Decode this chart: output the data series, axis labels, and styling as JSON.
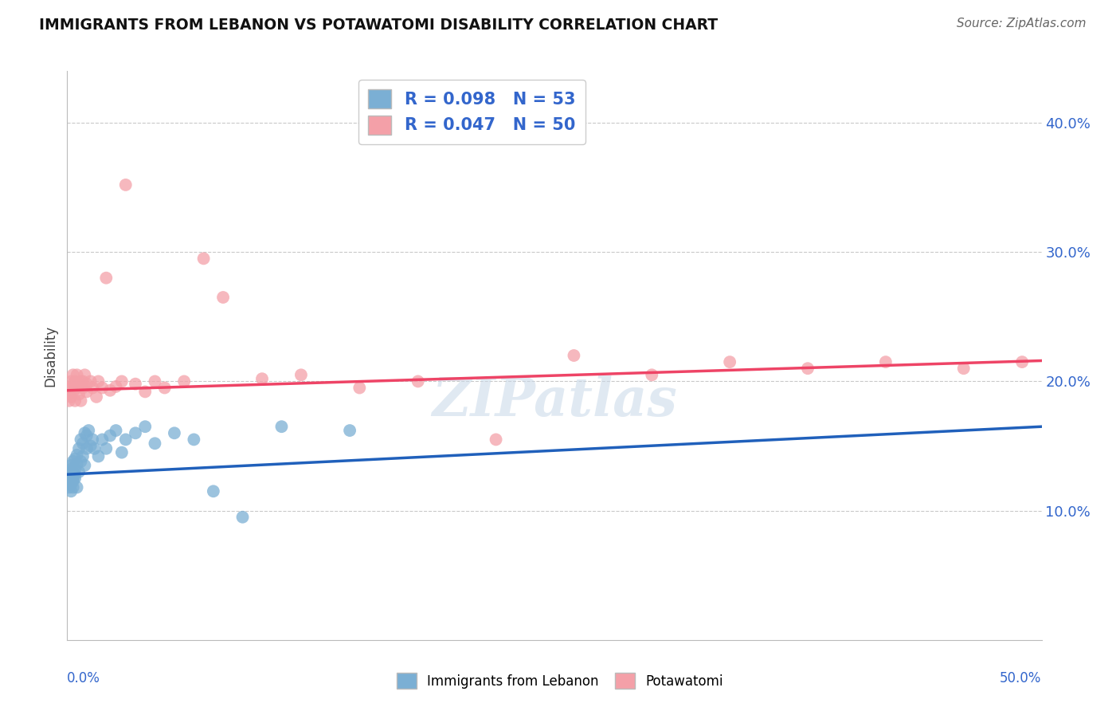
{
  "title": "IMMIGRANTS FROM LEBANON VS POTAWATOMI DISABILITY CORRELATION CHART",
  "source": "Source: ZipAtlas.com",
  "ylabel": "Disability",
  "xlim": [
    0.0,
    0.5
  ],
  "ylim": [
    0.0,
    0.44
  ],
  "ytick_values": [
    0.1,
    0.2,
    0.3,
    0.4
  ],
  "legend_label1": "R = 0.098   N = 53",
  "legend_label2": "R = 0.047   N = 50",
  "legend_series1": "Immigrants from Lebanon",
  "legend_series2": "Potawatomi",
  "blue_color": "#7BAFD4",
  "pink_color": "#F4A0A8",
  "line_blue": "#2060BB",
  "line_pink": "#EE4466",
  "text_color": "#3366CC",
  "watermark": "ZIPatlas",
  "blue_intercept": 0.128,
  "blue_slope": 0.074,
  "pink_intercept": 0.193,
  "pink_slope": 0.046,
  "blue_x": [
    0.001,
    0.001,
    0.001,
    0.001,
    0.001,
    0.002,
    0.002,
    0.002,
    0.002,
    0.002,
    0.002,
    0.003,
    0.003,
    0.003,
    0.003,
    0.003,
    0.004,
    0.004,
    0.004,
    0.004,
    0.005,
    0.005,
    0.005,
    0.006,
    0.006,
    0.007,
    0.007,
    0.008,
    0.008,
    0.009,
    0.009,
    0.01,
    0.01,
    0.011,
    0.012,
    0.013,
    0.014,
    0.016,
    0.018,
    0.02,
    0.022,
    0.025,
    0.028,
    0.03,
    0.035,
    0.04,
    0.045,
    0.055,
    0.065,
    0.075,
    0.09,
    0.11,
    0.145
  ],
  "blue_y": [
    0.125,
    0.13,
    0.118,
    0.122,
    0.128,
    0.132,
    0.126,
    0.12,
    0.135,
    0.128,
    0.115,
    0.138,
    0.124,
    0.13,
    0.118,
    0.123,
    0.14,
    0.132,
    0.125,
    0.128,
    0.143,
    0.136,
    0.118,
    0.148,
    0.13,
    0.155,
    0.138,
    0.152,
    0.142,
    0.16,
    0.135,
    0.158,
    0.148,
    0.162,
    0.15,
    0.155,
    0.148,
    0.142,
    0.155,
    0.148,
    0.158,
    0.162,
    0.145,
    0.155,
    0.16,
    0.165,
    0.152,
    0.16,
    0.155,
    0.115,
    0.095,
    0.165,
    0.162
  ],
  "pink_x": [
    0.001,
    0.001,
    0.002,
    0.002,
    0.002,
    0.003,
    0.003,
    0.003,
    0.004,
    0.004,
    0.005,
    0.005,
    0.006,
    0.006,
    0.007,
    0.007,
    0.008,
    0.008,
    0.009,
    0.01,
    0.01,
    0.012,
    0.013,
    0.015,
    0.016,
    0.018,
    0.02,
    0.022,
    0.025,
    0.028,
    0.03,
    0.035,
    0.04,
    0.045,
    0.05,
    0.06,
    0.07,
    0.08,
    0.1,
    0.12,
    0.15,
    0.18,
    0.22,
    0.26,
    0.3,
    0.34,
    0.38,
    0.42,
    0.46,
    0.49
  ],
  "pink_y": [
    0.19,
    0.185,
    0.2,
    0.195,
    0.188,
    0.205,
    0.198,
    0.192,
    0.2,
    0.185,
    0.195,
    0.205,
    0.198,
    0.19,
    0.2,
    0.185,
    0.195,
    0.2,
    0.205,
    0.198,
    0.192,
    0.2,
    0.195,
    0.188,
    0.2,
    0.195,
    0.28,
    0.193,
    0.196,
    0.2,
    0.352,
    0.198,
    0.192,
    0.2,
    0.195,
    0.2,
    0.295,
    0.265,
    0.202,
    0.205,
    0.195,
    0.2,
    0.155,
    0.22,
    0.205,
    0.215,
    0.21,
    0.215,
    0.21,
    0.215
  ]
}
